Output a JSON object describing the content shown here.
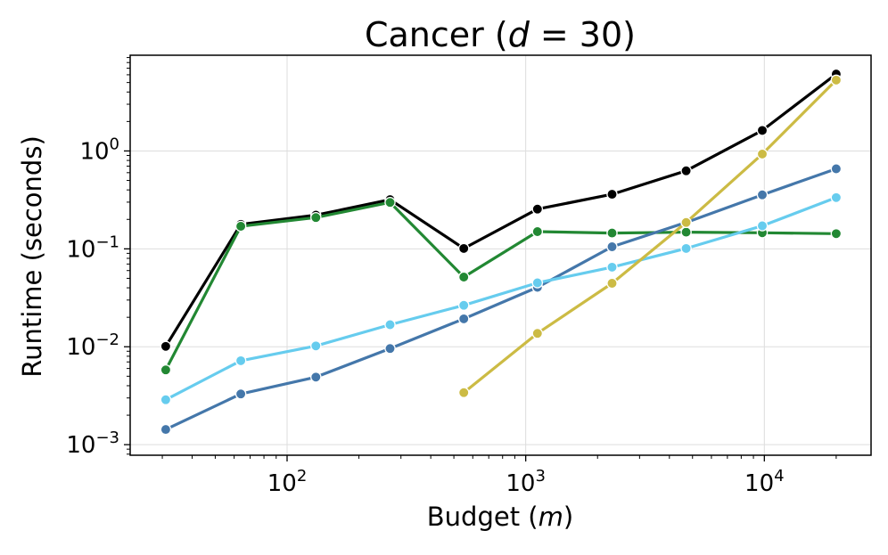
{
  "chart_data": {
    "type": "line",
    "title": "Cancer (d = 30)",
    "title_parts": {
      "prefix": "Cancer (",
      "var": "d",
      "rest": " = 30)"
    },
    "xlabel": "Budget (m)",
    "xlabel_parts": {
      "prefix": "Budget (",
      "var": "m",
      "suffix": ")"
    },
    "ylabel": "Runtime (seconds)",
    "xscale": "log",
    "yscale": "log",
    "xlim": [
      22,
      28000
    ],
    "ylim": [
      0.00078,
      9.5
    ],
    "x_ticks": [
      {
        "value": 100,
        "base": "10",
        "exp": "2"
      },
      {
        "value": 1000,
        "base": "10",
        "exp": "3"
      },
      {
        "value": 10000,
        "base": "10",
        "exp": "4"
      }
    ],
    "y_ticks": [
      {
        "value": 0.001,
        "base": "10",
        "exp": "−3"
      },
      {
        "value": 0.01,
        "base": "10",
        "exp": "−2"
      },
      {
        "value": 0.1,
        "base": "10",
        "exp": "−1"
      },
      {
        "value": 1,
        "base": "10",
        "exp": "0"
      }
    ],
    "grid": true,
    "legend": "none",
    "series": [
      {
        "name": "black",
        "color": "#000000",
        "x": [
          31,
          64,
          132,
          270,
          550,
          1120,
          2300,
          4700,
          9800,
          20000
        ],
        "y": [
          0.0101,
          0.178,
          0.221,
          0.318,
          0.101,
          0.255,
          0.361,
          0.628,
          1.62,
          6.1
        ]
      },
      {
        "name": "green",
        "color": "#228833",
        "x": [
          31,
          64,
          132,
          270,
          550,
          1120,
          2300,
          4700,
          9800,
          20000
        ],
        "y": [
          0.0058,
          0.17,
          0.209,
          0.298,
          0.0515,
          0.15,
          0.145,
          0.148,
          0.146,
          0.143
        ]
      },
      {
        "name": "blue",
        "color": "#4477AA",
        "x": [
          31,
          64,
          132,
          270,
          550,
          1120,
          2300,
          4700,
          9800,
          20000
        ],
        "y": [
          0.00143,
          0.0033,
          0.0049,
          0.0096,
          0.0193,
          0.0405,
          0.105,
          0.186,
          0.356,
          0.657
        ]
      },
      {
        "name": "cyan",
        "color": "#66CCEE",
        "x": [
          31,
          64,
          132,
          270,
          550,
          1120,
          2300,
          4700,
          9800,
          20000
        ],
        "y": [
          0.00288,
          0.0072,
          0.0102,
          0.0168,
          0.0265,
          0.045,
          0.065,
          0.101,
          0.172,
          0.334
        ]
      },
      {
        "name": "yellow",
        "color": "#CCBB44",
        "x": [
          550,
          1120,
          2300,
          4700,
          9800,
          20000
        ],
        "y": [
          0.0034,
          0.0137,
          0.0445,
          0.186,
          0.93,
          5.3
        ]
      }
    ]
  }
}
